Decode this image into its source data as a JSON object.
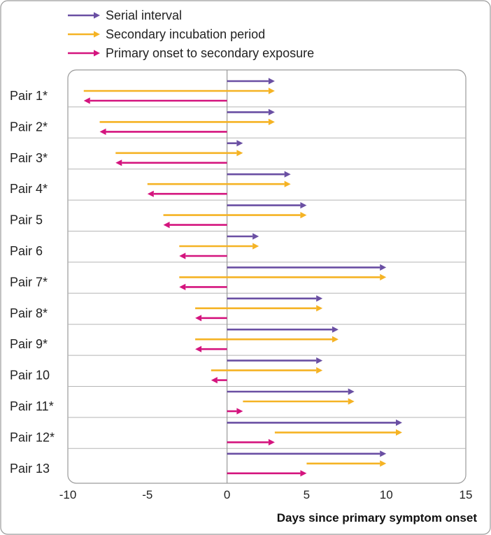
{
  "chart_data": {
    "type": "interval-arrows",
    "xlabel": "Days since primary symptom onset",
    "xlim": [
      -10,
      15
    ],
    "xticks": [
      -10,
      -5,
      0,
      5,
      10,
      15
    ],
    "legend_position": "top-left",
    "series": [
      {
        "key": "serial",
        "name": "Serial interval",
        "color": "#6a4fa3"
      },
      {
        "key": "incubation",
        "name": "Secondary incubation period",
        "color": "#f5b324"
      },
      {
        "key": "exposure",
        "name": "Primary onset to secondary exposure",
        "color": "#d4147e"
      }
    ],
    "pairs": [
      {
        "label": "Pair 1*",
        "serial": [
          0,
          3
        ],
        "incubation": [
          -9,
          3
        ],
        "exposure": [
          0,
          -9
        ]
      },
      {
        "label": "Pair 2*",
        "serial": [
          0,
          3
        ],
        "incubation": [
          -8,
          3
        ],
        "exposure": [
          0,
          -8
        ]
      },
      {
        "label": "Pair 3*",
        "serial": [
          0,
          1
        ],
        "incubation": [
          -7,
          1
        ],
        "exposure": [
          0,
          -7
        ]
      },
      {
        "label": "Pair 4*",
        "serial": [
          0,
          4
        ],
        "incubation": [
          -5,
          4
        ],
        "exposure": [
          0,
          -5
        ]
      },
      {
        "label": "Pair 5",
        "serial": [
          0,
          5
        ],
        "incubation": [
          -4,
          5
        ],
        "exposure": [
          0,
          -4
        ]
      },
      {
        "label": "Pair 6",
        "serial": [
          0,
          2
        ],
        "incubation": [
          -3,
          2
        ],
        "exposure": [
          0,
          -3
        ]
      },
      {
        "label": "Pair 7*",
        "serial": [
          0,
          10
        ],
        "incubation": [
          -3,
          10
        ],
        "exposure": [
          0,
          -3
        ]
      },
      {
        "label": "Pair 8*",
        "serial": [
          0,
          6
        ],
        "incubation": [
          -2,
          6
        ],
        "exposure": [
          0,
          -2
        ]
      },
      {
        "label": "Pair 9*",
        "serial": [
          0,
          7
        ],
        "incubation": [
          -2,
          7
        ],
        "exposure": [
          0,
          -2
        ]
      },
      {
        "label": "Pair 10",
        "serial": [
          0,
          6
        ],
        "incubation": [
          -1,
          6
        ],
        "exposure": [
          0,
          -1
        ]
      },
      {
        "label": "Pair 11*",
        "serial": [
          0,
          8
        ],
        "incubation": [
          1,
          8
        ],
        "exposure": [
          0,
          1
        ]
      },
      {
        "label": "Pair 12*",
        "serial": [
          0,
          11
        ],
        "incubation": [
          3,
          11
        ],
        "exposure": [
          0,
          3
        ]
      },
      {
        "label": "Pair 13",
        "serial": [
          0,
          10
        ],
        "incubation": [
          5,
          10
        ],
        "exposure": [
          0,
          5
        ]
      }
    ]
  }
}
